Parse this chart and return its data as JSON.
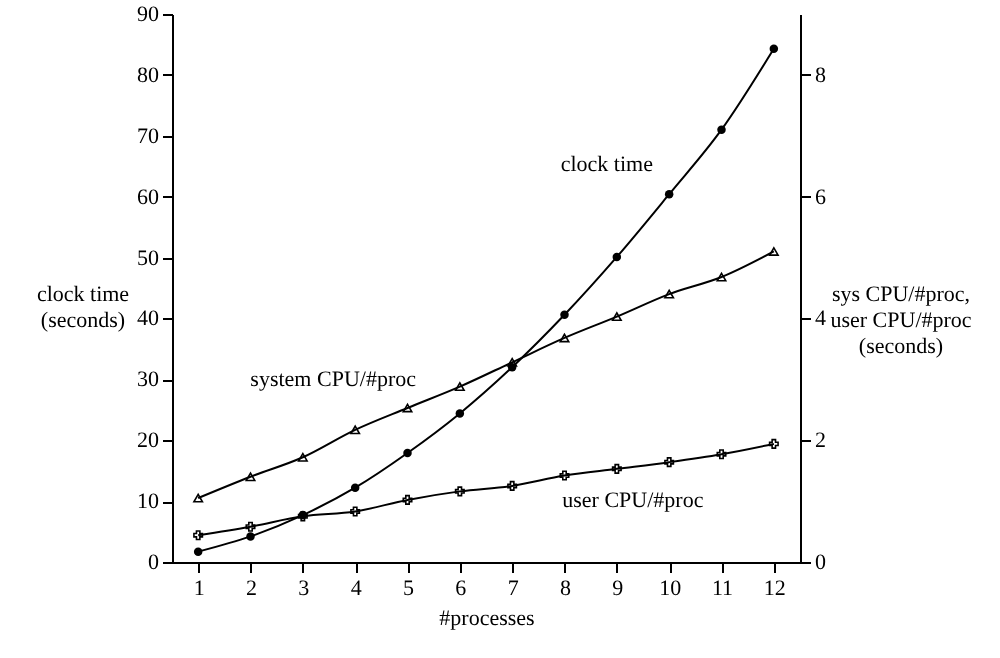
{
  "chart_data": {
    "type": "line",
    "xlabel": "#processes",
    "ylabel": "clock time\n(seconds)",
    "y2label": "sys CPU/#proc,\nuser CPU/#proc\n(seconds)",
    "x": [
      1,
      2,
      3,
      4,
      5,
      6,
      7,
      8,
      9,
      10,
      11,
      12
    ],
    "xlim": [
      0.5,
      12.5
    ],
    "xticks": [
      1,
      2,
      3,
      4,
      5,
      6,
      7,
      8,
      9,
      10,
      11,
      12
    ],
    "ylim": [
      0,
      90
    ],
    "yticks": [
      0,
      10,
      20,
      30,
      40,
      50,
      60,
      70,
      80,
      90
    ],
    "y2lim": [
      0,
      9
    ],
    "y2ticks": [
      0,
      2,
      4,
      6,
      8
    ],
    "grid": false,
    "series": [
      {
        "name": "clock time",
        "color": "#000000",
        "marker": "circle",
        "values": [
          1.7,
          4.2,
          7.7,
          12.2,
          17.9,
          24.4,
          32,
          40.6,
          50.1,
          60.4,
          71,
          84.3
        ]
      },
      {
        "name": "system CPU/#proc",
        "color": "#000000",
        "marker": "triangle",
        "axis": "y2",
        "values": [
          1.05,
          1.4,
          1.72,
          2.17,
          2.53,
          2.88,
          3.28,
          3.68,
          4.03,
          4.4,
          4.68,
          5.1
        ]
      },
      {
        "name": "user CPU/#proc",
        "color": "#000000",
        "marker": "cross",
        "axis": "y2",
        "values": [
          0.44,
          0.58,
          0.75,
          0.83,
          1.02,
          1.16,
          1.25,
          1.42,
          1.53,
          1.64,
          1.77,
          1.94
        ]
      }
    ]
  }
}
